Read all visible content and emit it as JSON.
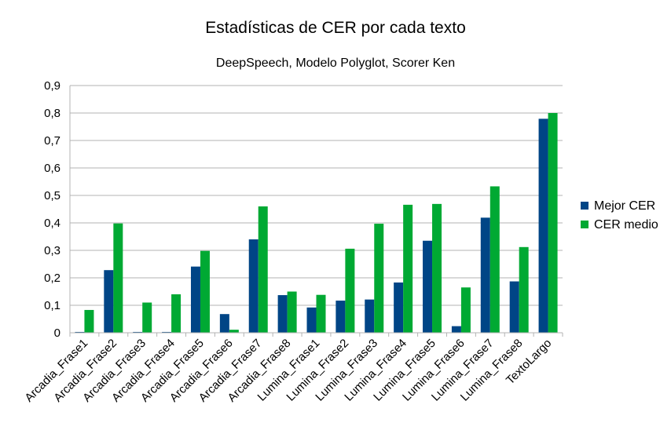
{
  "chart_data": {
    "type": "bar",
    "title": "Estadísticas de CER por cada texto",
    "subtitle": "DeepSpeech, Modelo Polyglot, Scorer Ken",
    "xlabel": "",
    "ylabel": "",
    "ylim": [
      0,
      0.9
    ],
    "yticks": [
      "0",
      "0,1",
      "0,2",
      "0,3",
      "0,4",
      "0,5",
      "0,6",
      "0,7",
      "0,8",
      "0,9"
    ],
    "grid": true,
    "legend_position": "right",
    "categories": [
      "Arcadia_Frase1",
      "Arcadia_Frase2",
      "Arcadia_Frase3",
      "Arcadia_Frase4",
      "Arcadia_Frase5",
      "Arcadia_Frase6",
      "Arcadia_Frase7",
      "Arcadia_Frase8",
      "Lumina_Frase1",
      "Lumina_Frase2",
      "Lumina_Frase3",
      "Lumina_Frase4",
      "Lumina_Frase5",
      "Lumina_Frase6",
      "Lumina_Frase7",
      "Lumina_Frase8",
      "TextoLargo"
    ],
    "series": [
      {
        "name": "Mejor CER",
        "color": "#004586",
        "values": [
          0.003,
          0.228,
          0.003,
          0.003,
          0.241,
          0.068,
          0.34,
          0.137,
          0.092,
          0.117,
          0.121,
          0.183,
          0.335,
          0.024,
          0.419,
          0.187,
          0.779
        ]
      },
      {
        "name": "CER medio",
        "color": "#00a933",
        "values": [
          0.083,
          0.398,
          0.11,
          0.14,
          0.298,
          0.011,
          0.46,
          0.15,
          0.138,
          0.306,
          0.397,
          0.466,
          0.469,
          0.165,
          0.533,
          0.312,
          0.8
        ]
      }
    ]
  }
}
